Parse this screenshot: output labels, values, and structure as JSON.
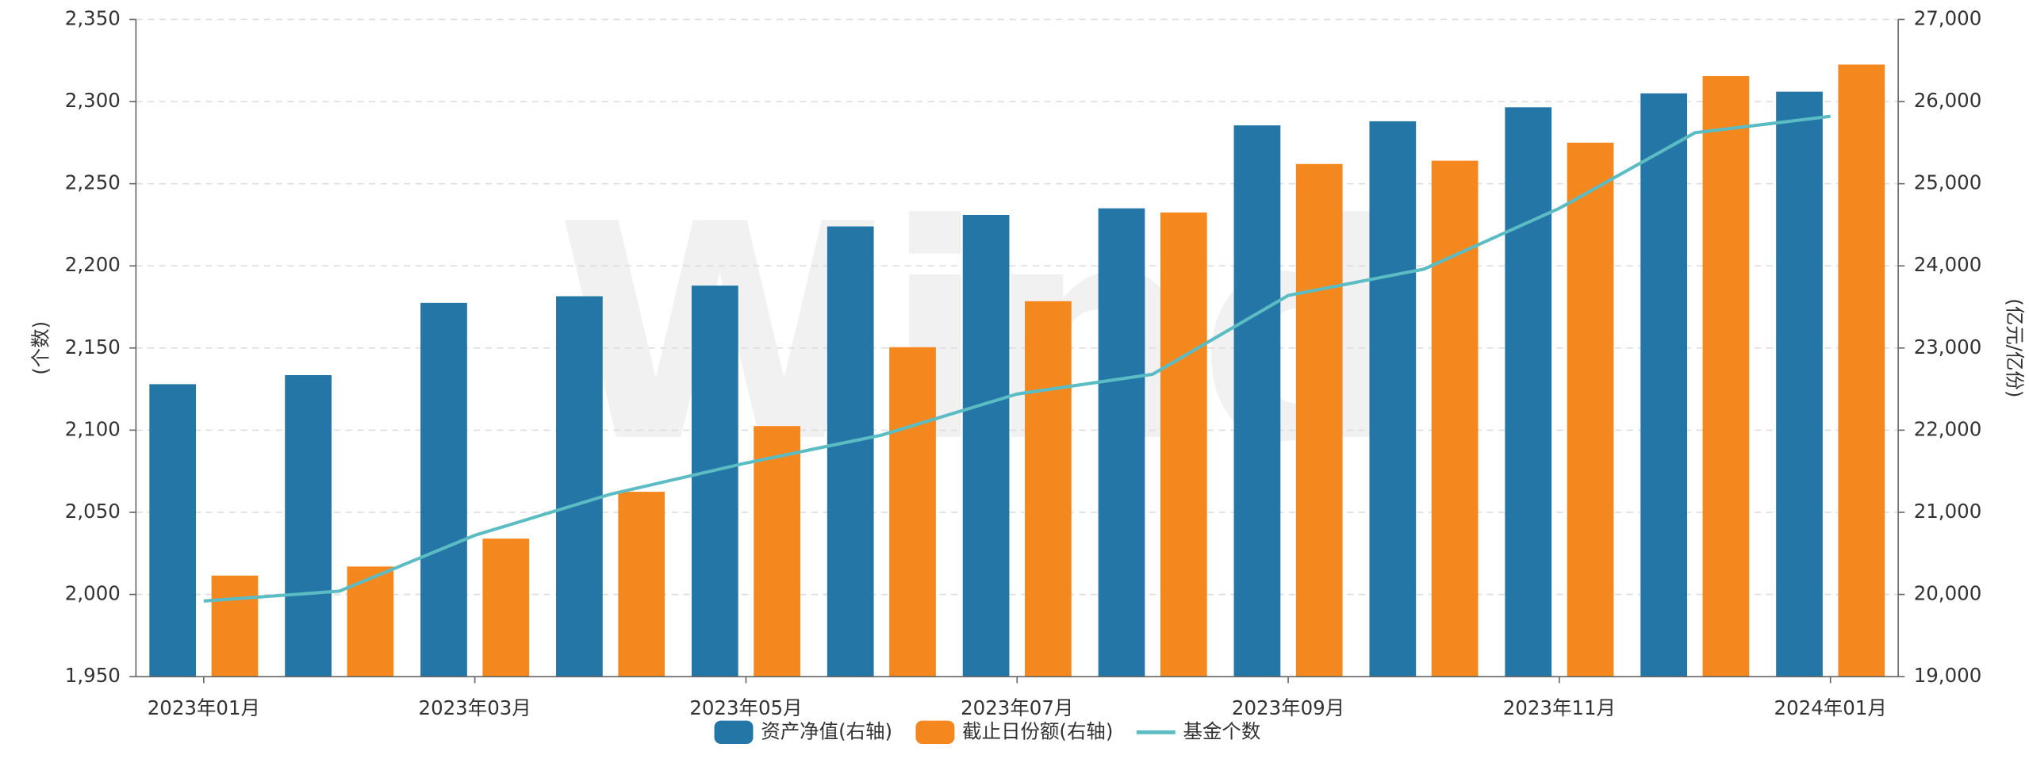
{
  "chart_data": {
    "type": "bar_line",
    "watermark": "Wind",
    "y_label": "(个数)",
    "y2_label": "(亿元/亿份)",
    "categories": [
      "2023年01月",
      null,
      "2023年03月",
      null,
      "2023年05月",
      null,
      "2023年07月",
      null,
      "2023年09月",
      null,
      "2023年11月",
      null,
      "2024年01月"
    ],
    "series": [
      {
        "name": "资产净值(右轴)",
        "color": "#2376a6",
        "type": "bar",
        "axis": "y2",
        "values": [
          22560,
          22670,
          23550,
          23630,
          23760,
          24480,
          24620,
          24700,
          25710,
          25760,
          25930,
          26100,
          26120
        ]
      },
      {
        "name": "截止日份额(右轴)",
        "color": "#f5871f",
        "type": "bar",
        "axis": "y2",
        "values": [
          20230,
          20340,
          20680,
          21250,
          22050,
          23010,
          23570,
          24650,
          25240,
          25280,
          25500,
          26310,
          26450
        ]
      },
      {
        "name": "基金个数",
        "color": "#5bbcc4",
        "type": "line",
        "axis": "y",
        "values": [
          1996,
          2002,
          2036,
          2061,
          2080,
          2097,
          2122,
          2134,
          2182,
          2198,
          2235,
          2281,
          2291
        ]
      }
    ],
    "ylim": [
      1950,
      2350
    ],
    "yticks": [
      {
        "value": 1950,
        "label": "1,950"
      },
      {
        "value": 2000,
        "label": "2,000"
      },
      {
        "value": 2050,
        "label": "2,050"
      },
      {
        "value": 2100,
        "label": "2,100"
      },
      {
        "value": 2150,
        "label": "2,150"
      },
      {
        "value": 2200,
        "label": "2,200"
      },
      {
        "value": 2250,
        "label": "2,250"
      },
      {
        "value": 2300,
        "label": "2,300"
      },
      {
        "value": 2350,
        "label": "2,350"
      }
    ],
    "y2lim": [
      19000,
      27000
    ],
    "y2ticks": [
      {
        "value": 19000,
        "label": "19,000"
      },
      {
        "value": 20000,
        "label": "20,000"
      },
      {
        "value": 21000,
        "label": "21,000"
      },
      {
        "value": 22000,
        "label": "22,000"
      },
      {
        "value": 23000,
        "label": "23,000"
      },
      {
        "value": 24000,
        "label": "24,000"
      },
      {
        "value": 25000,
        "label": "25,000"
      },
      {
        "value": 26000,
        "label": "26,000"
      },
      {
        "value": 27000,
        "label": "27,000"
      }
    ],
    "grid": true,
    "legend": "bottom"
  }
}
